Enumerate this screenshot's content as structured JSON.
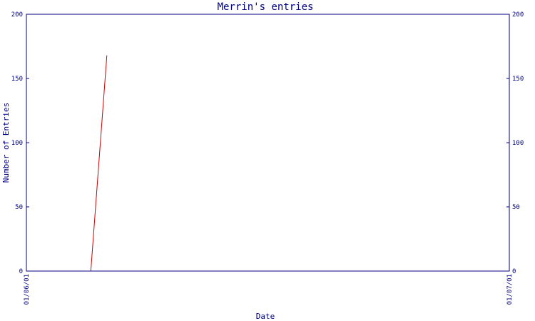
{
  "chart_data": {
    "type": "line",
    "title": "Merrin's entries",
    "xlabel": "Date",
    "ylabel": "Number of Entries",
    "ylim": [
      0,
      200
    ],
    "yticks": [
      "0",
      "50",
      "100",
      "150",
      "200"
    ],
    "xticks": [
      "01/06/01",
      "01/07/01"
    ],
    "xlim": [
      "2001-06-01",
      "2001-07-01"
    ],
    "grid": false,
    "series": [
      {
        "x": [
          "2001-06-05",
          "2001-06-06"
        ],
        "values": [
          0,
          168
        ]
      }
    ]
  },
  "colors": {
    "axis": "#000080",
    "series": "#cc0000",
    "background": "#ffffff"
  }
}
